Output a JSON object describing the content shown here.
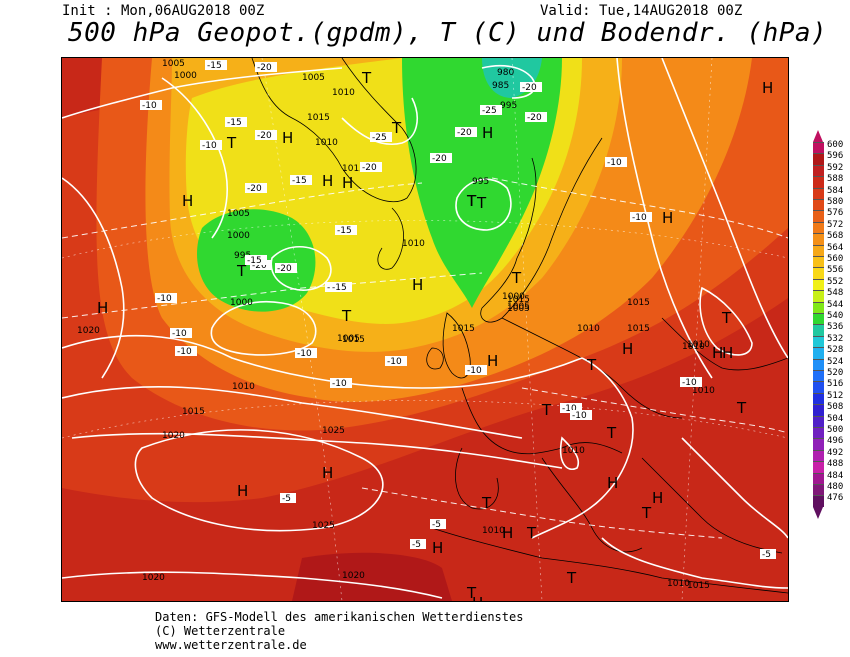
{
  "header": {
    "init": "Init : Mon,06AUG2018 00Z",
    "valid": "Valid: Tue,14AUG2018 00Z",
    "title": "500 hPa Geopot.(gpdm), T (C) und Bodendr. (hPa)"
  },
  "legend": {
    "values": [
      "600",
      "596",
      "592",
      "588",
      "584",
      "580",
      "576",
      "572",
      "568",
      "564",
      "560",
      "556",
      "552",
      "548",
      "544",
      "540",
      "536",
      "532",
      "528",
      "524",
      "520",
      "516",
      "512",
      "508",
      "504",
      "500",
      "496",
      "492",
      "488",
      "484",
      "480",
      "476"
    ],
    "colors": [
      "#c01060",
      "#b01818",
      "#c02020",
      "#cc2a18",
      "#d83a18",
      "#e04a18",
      "#e86018",
      "#f07a18",
      "#f49018",
      "#f6a818",
      "#f8c018",
      "#f8d818",
      "#f0f018",
      "#c8f018",
      "#80e818",
      "#30d830",
      "#20c8a0",
      "#20c8d8",
      "#20b0f0",
      "#2090f8",
      "#2070f8",
      "#2050f0",
      "#2030e0",
      "#3020d0",
      "#5020c8",
      "#7020c0",
      "#9020b8",
      "#b020b0",
      "#c820a8",
      "#a01890",
      "#801878",
      "#601060"
    ]
  },
  "map": {
    "pressure_labels": [
      "1005",
      "1000",
      "1005",
      "1010",
      "1015",
      "1010",
      "1015",
      "1005",
      "1000",
      "995",
      "1000",
      "980",
      "985",
      "995",
      "995",
      "1005",
      "1010",
      "1015",
      "1015",
      "1010",
      "1015",
      "1000",
      "1005",
      "1015",
      "1010",
      "1015",
      "1005",
      "1010",
      "1020",
      "1015",
      "1020",
      "1025",
      "1025",
      "1020",
      "1020",
      "1010",
      "1010",
      "1015",
      "1010",
      "1010",
      "1010"
    ],
    "temp_labels": [
      "-15",
      "-20",
      "-10",
      "-15",
      "-20",
      "-10",
      "-15",
      "-20",
      "-25",
      "-20",
      "-20",
      "-20",
      "-25",
      "-20",
      "-20",
      "-15",
      "-10",
      "-15",
      "-20",
      "-20",
      "-10",
      "-15",
      "-15",
      "-10",
      "-10",
      "-10",
      "-10",
      "-10",
      "-10",
      "-10",
      "-10",
      "-10",
      "-5",
      "-5",
      "-5",
      "-10",
      "-5"
    ],
    "high_symbol": "H",
    "low_symbol": "T"
  },
  "footer": {
    "line1": "Daten: GFS-Modell des amerikanischen Wetterdienstes",
    "line2": "(C) Wetterzentrale",
    "line3": "www.wetterzentrale.de"
  }
}
